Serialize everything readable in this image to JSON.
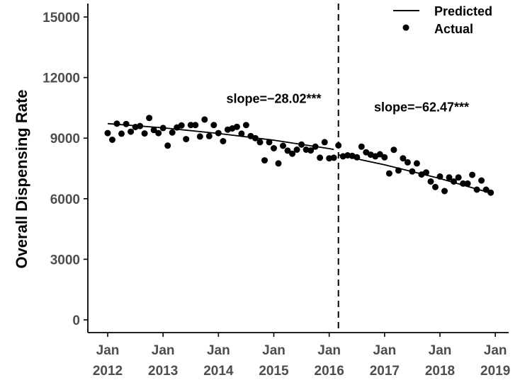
{
  "chart_data": {
    "type": "scatter",
    "title": "",
    "xlabel": "",
    "ylabel": "Overall Dispensing Rate",
    "ylim": [
      0,
      15500
    ],
    "yticks": [
      0,
      3000,
      6000,
      9000,
      12000,
      15000
    ],
    "xlim": [
      "2011-11",
      "2019-03"
    ],
    "xticks": [
      {
        "date": "2012-01",
        "line1": "Jan",
        "line2": "2012"
      },
      {
        "date": "2013-01",
        "line1": "Jan",
        "line2": "2013"
      },
      {
        "date": "2014-01",
        "line1": "Jan",
        "line2": "2014"
      },
      {
        "date": "2015-01",
        "line1": "Jan",
        "line2": "2015"
      },
      {
        "date": "2016-01",
        "line1": "Jan",
        "line2": "2016"
      },
      {
        "date": "2017-01",
        "line1": "Jan",
        "line2": "2017"
      },
      {
        "date": "2018-01",
        "line1": "Jan",
        "line2": "2018"
      },
      {
        "date": "2019-01",
        "line1": "Jan",
        "line2": "2019"
      }
    ],
    "grid": false,
    "legend": {
      "placement": "top-right",
      "items": [
        {
          "label": "Predicted",
          "symbol": "line"
        },
        {
          "label": "Actual",
          "symbol": "point"
        }
      ]
    },
    "intervention": "2016-03",
    "annotations": [
      {
        "text": "slope=−28.02***",
        "x": "2015-01",
        "y": 10750
      },
      {
        "text": "slope=−62.47***",
        "x": "2017-09",
        "y": 10330
      }
    ],
    "series": [
      {
        "name": "Predicted",
        "kind": "line",
        "segments": [
          {
            "x": [
              "2012-01",
              "2013-01",
              "2014-01",
              "2015-01",
              "2016-01",
              "2016-02"
            ],
            "y": [
              9720,
              9510,
              9230,
              8900,
              8480,
              8440
            ]
          },
          {
            "x": [
              "2016-03",
              "2017-01",
              "2018-01",
              "2018-12"
            ],
            "y": [
              8170,
              7680,
              7000,
              6280
            ]
          }
        ]
      },
      {
        "name": "Actual",
        "kind": "scatter",
        "x": [
          "2012-01",
          "2012-02",
          "2012-03",
          "2012-04",
          "2012-05",
          "2012-06",
          "2012-07",
          "2012-08",
          "2012-09",
          "2012-10",
          "2012-11",
          "2012-12",
          "2013-01",
          "2013-02",
          "2013-03",
          "2013-04",
          "2013-05",
          "2013-06",
          "2013-07",
          "2013-08",
          "2013-09",
          "2013-10",
          "2013-11",
          "2013-12",
          "2014-01",
          "2014-02",
          "2014-03",
          "2014-04",
          "2014-05",
          "2014-06",
          "2014-07",
          "2014-08",
          "2014-09",
          "2014-10",
          "2014-11",
          "2014-12",
          "2015-01",
          "2015-02",
          "2015-03",
          "2015-04",
          "2015-05",
          "2015-06",
          "2015-07",
          "2015-08",
          "2015-09",
          "2015-10",
          "2015-11",
          "2015-12",
          "2016-01",
          "2016-02",
          "2016-03",
          "2016-04",
          "2016-05",
          "2016-06",
          "2016-07",
          "2016-08",
          "2016-09",
          "2016-10",
          "2016-11",
          "2016-12",
          "2017-01",
          "2017-02",
          "2017-03",
          "2017-04",
          "2017-05",
          "2017-06",
          "2017-07",
          "2017-08",
          "2017-09",
          "2017-10",
          "2017-11",
          "2017-12",
          "2018-01",
          "2018-02",
          "2018-03",
          "2018-04",
          "2018-05",
          "2018-06",
          "2018-07",
          "2018-08",
          "2018-09",
          "2018-10",
          "2018-11",
          "2018-12"
        ],
        "y": [
          9250,
          8920,
          9720,
          9220,
          9700,
          9320,
          9550,
          9600,
          9230,
          10000,
          9400,
          9250,
          9500,
          8630,
          9280,
          9530,
          9630,
          8950,
          9650,
          9650,
          9080,
          9920,
          9100,
          9650,
          9250,
          8850,
          9420,
          9480,
          9560,
          9220,
          9650,
          9100,
          9000,
          8800,
          7900,
          8800,
          8500,
          7750,
          8620,
          8380,
          8230,
          8430,
          8680,
          8430,
          8390,
          8580,
          8030,
          8800,
          8000,
          8030,
          8640,
          8100,
          8150,
          8120,
          8050,
          8580,
          8300,
          8180,
          8100,
          8200,
          8050,
          7250,
          8420,
          7400,
          8000,
          7800,
          7350,
          7750,
          7200,
          7300,
          6850,
          6580,
          7100,
          6380,
          7050,
          6850,
          7050,
          6750,
          6750,
          7180,
          6450,
          6900,
          6450,
          6300
        ]
      }
    ]
  }
}
